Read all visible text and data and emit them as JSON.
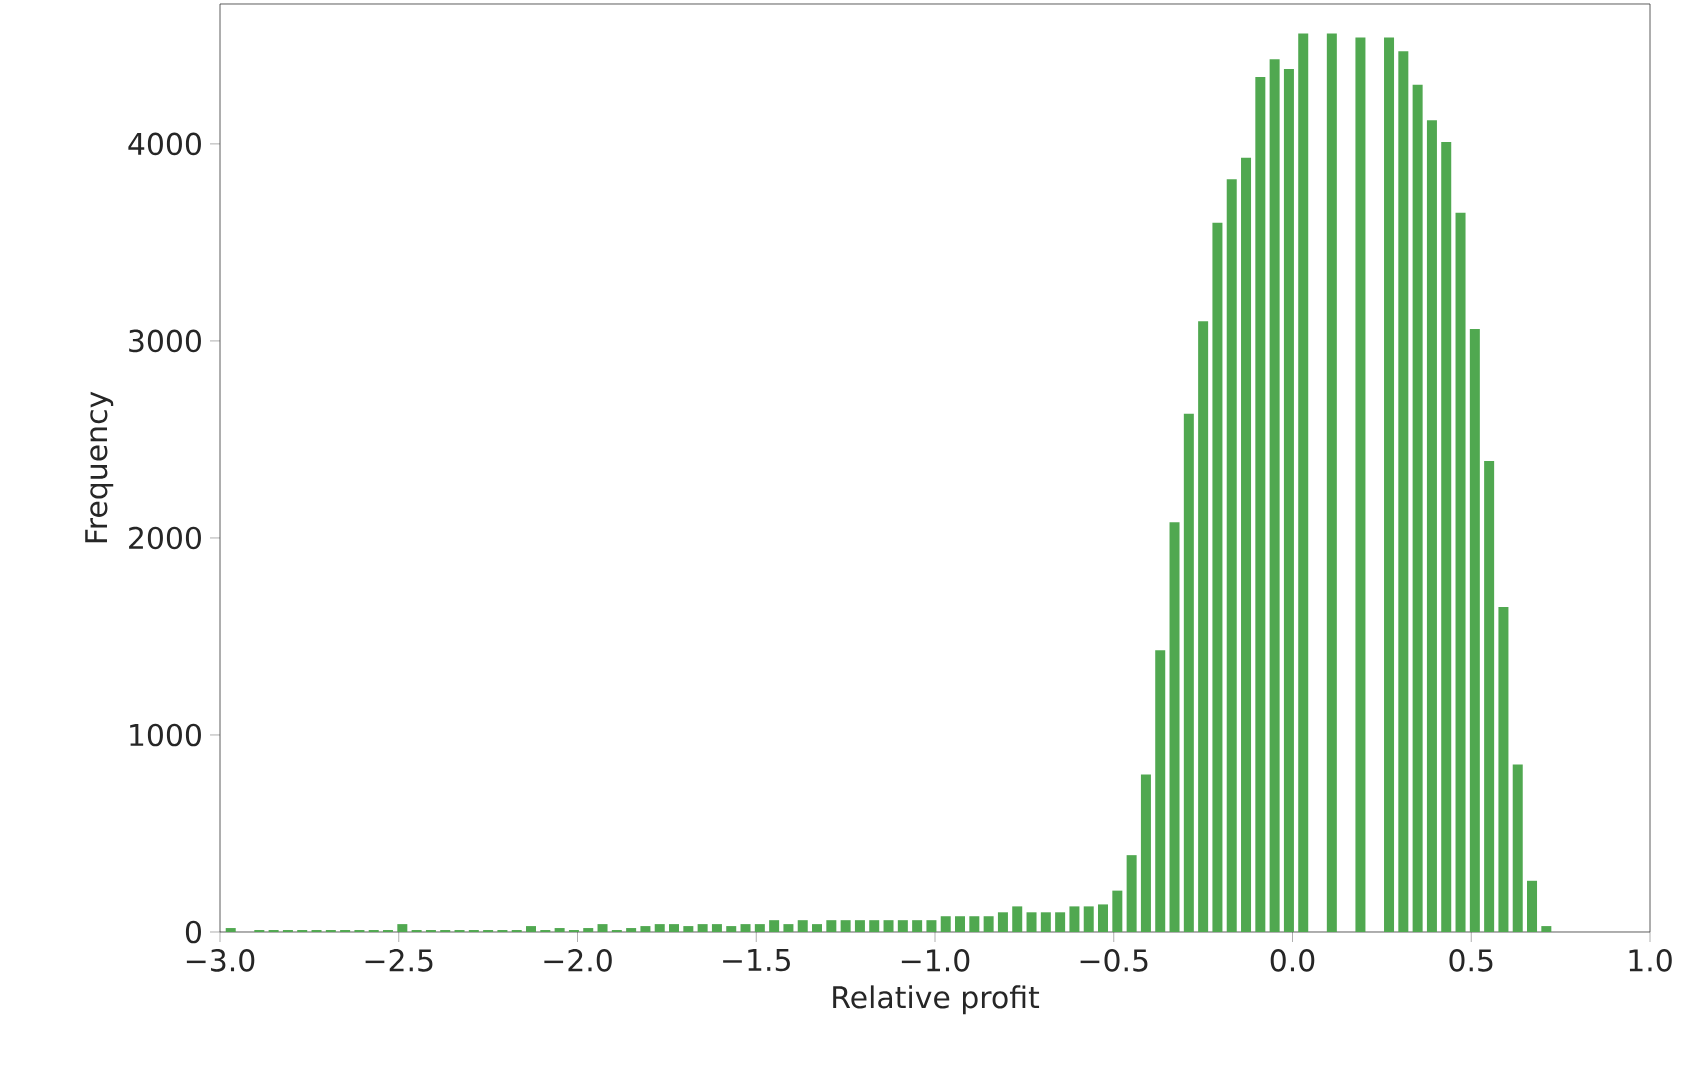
{
  "chart_data": {
    "type": "histogram",
    "xlabel": "Relative profit",
    "ylabel": "Frequency",
    "color": "#50a850",
    "bins": [
      -2.99,
      -2.95,
      -2.91,
      -2.87,
      -2.83,
      -2.79,
      -2.75,
      -2.71,
      -2.67,
      -2.63,
      -2.59,
      -2.55,
      -2.51,
      -2.47,
      -2.43,
      -2.39,
      -2.35,
      -2.31,
      -2.27,
      -2.23,
      -2.19,
      -2.15,
      -2.11,
      -2.07,
      -2.03,
      -1.99,
      -1.95,
      -1.91,
      -1.87,
      -1.83,
      -1.79,
      -1.75,
      -1.71,
      -1.67,
      -1.63,
      -1.59,
      -1.55,
      -1.51,
      -1.47,
      -1.43,
      -1.39,
      -1.35,
      -1.31,
      -1.27,
      -1.23,
      -1.19,
      -1.15,
      -1.11,
      -1.07,
      -1.03,
      -0.99,
      -0.95,
      -0.91,
      -0.87,
      -0.83,
      -0.79,
      -0.75,
      -0.71,
      -0.67,
      -0.63,
      -0.59,
      -0.55,
      -0.51,
      -0.47,
      -0.43,
      -0.39,
      -0.35,
      -0.31,
      -0.27,
      -0.23,
      -0.19,
      -0.15,
      -0.11,
      -0.07,
      -0.03,
      0.01,
      0.05,
      0.09,
      0.13,
      0.17,
      0.21,
      0.25,
      0.29,
      0.33,
      0.37,
      0.41,
      0.45,
      0.49,
      0.53,
      0.57,
      0.61,
      0.65,
      0.69,
      0.73
    ],
    "values": [
      20,
      0,
      10,
      10,
      10,
      10,
      10,
      10,
      10,
      10,
      10,
      10,
      40,
      10,
      10,
      10,
      10,
      10,
      10,
      10,
      10,
      30,
      10,
      20,
      10,
      20,
      40,
      10,
      20,
      30,
      40,
      40,
      30,
      40,
      40,
      30,
      40,
      40,
      60,
      40,
      60,
      40,
      60,
      60,
      60,
      60,
      60,
      60,
      60,
      60,
      80,
      80,
      80,
      80,
      100,
      130,
      100,
      100,
      100,
      130,
      130,
      140,
      210,
      390,
      800,
      1430,
      2080,
      2630,
      3100,
      3600,
      3820,
      3930,
      4340,
      4430,
      4380,
      4560,
      null,
      4560,
      null,
      4540,
      null,
      4540,
      4470,
      4300,
      4120,
      4010,
      3650,
      3060,
      2390,
      1650,
      850,
      260,
      30
    ],
    "xlim": [
      -3.0,
      1.0
    ],
    "xticks": [
      {
        "value": -3.0,
        "label": "−3.0"
      },
      {
        "value": -2.5,
        "label": "−2.5"
      },
      {
        "value": -2.0,
        "label": "−2.0"
      },
      {
        "value": -1.5,
        "label": "−1.5"
      },
      {
        "value": -1.0,
        "label": "−1.0"
      },
      {
        "value": -0.5,
        "label": "−0.5"
      },
      {
        "value": 0.0,
        "label": "0.0"
      },
      {
        "value": 0.5,
        "label": "0.5"
      },
      {
        "value": 1.0,
        "label": "1.0"
      }
    ],
    "ylim": [
      0,
      4710
    ],
    "yticks": [
      0,
      1000,
      2000,
      3000,
      4000
    ]
  }
}
